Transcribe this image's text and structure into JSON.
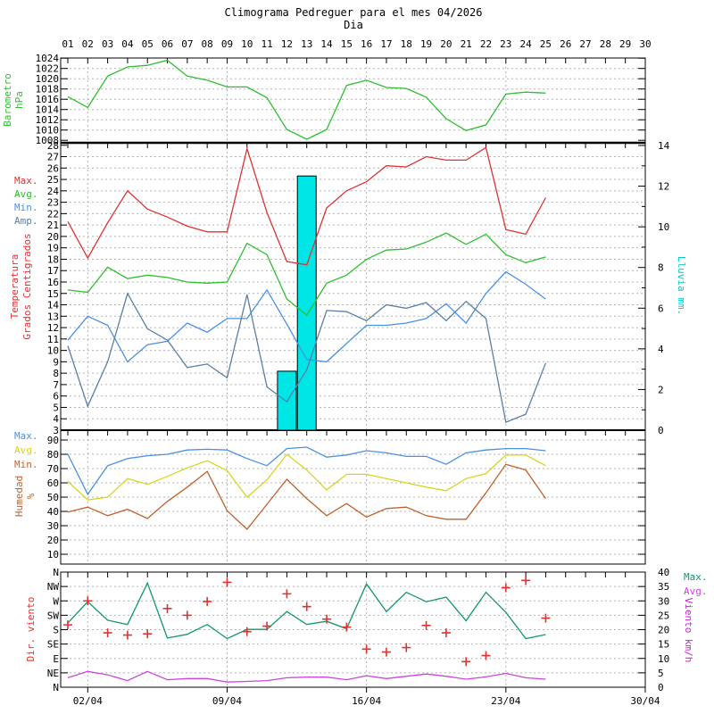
{
  "title": "Climograma Pedreguer para el mes 04/2026",
  "x_axis_title": "Dia",
  "top_axis_days": [
    "01",
    "02",
    "03",
    "04",
    "05",
    "06",
    "07",
    "08",
    "09",
    "10",
    "11",
    "12",
    "13",
    "14",
    "15",
    "16",
    "17",
    "18",
    "19",
    "20",
    "21",
    "22",
    "23",
    "24",
    "25",
    "26",
    "27",
    "28",
    "29",
    "30"
  ],
  "bottom_axis_labels": [
    {
      "label": "02/04",
      "day": 2
    },
    {
      "label": "09/04",
      "day": 9
    },
    {
      "label": "16/04",
      "day": 16
    },
    {
      "label": "23/04",
      "day": 23
    },
    {
      "label": "30/04",
      "day": 30
    }
  ],
  "week_gridline_days": [
    2,
    9,
    16,
    23
  ],
  "days": [
    1,
    2,
    3,
    4,
    5,
    6,
    7,
    8,
    9,
    10,
    11,
    12,
    13,
    14,
    15,
    16,
    17,
    18,
    19,
    20,
    21,
    22,
    23,
    24,
    25
  ],
  "colors": {
    "baro_axis": "#2fbf2f",
    "temp_axis": "#e03232",
    "rain_axis": "#00cccc",
    "hum_axis": "#c0622f",
    "wind_dir_axis": "#e03232",
    "wind_speed_axis": "#cc22cc",
    "grid": "#b3b3b3",
    "frame": "#000000",
    "tick_text": "#000000"
  },
  "chart_data": [
    {
      "id": "barometer",
      "type": "line",
      "ylabel": [
        "Barometro",
        "hPa"
      ],
      "ylim": [
        1007.5,
        1024
      ],
      "yticks": [
        1008,
        1010,
        1012,
        1014,
        1016,
        1018,
        1020,
        1022,
        1024
      ],
      "series": [
        {
          "name": "presion",
          "color": "#2fbf2f",
          "values": [
            1016.5,
            1014.4,
            1020.5,
            1022.3,
            1022.6,
            1023.6,
            1020.5,
            1019.7,
            1018.4,
            1018.4,
            1016.3,
            1010.1,
            1008.2,
            1010.1,
            1018.7,
            1019.7,
            1018.3,
            1018.1,
            1016.4,
            1012.2,
            1009.9,
            1011.0,
            1017.0,
            1017.4,
            1017.2
          ]
        }
      ]
    },
    {
      "id": "temperature",
      "type": "line+bar",
      "ylabel": [
        "Temperatura",
        "Grados Centigrados"
      ],
      "y2label": "Lluvia mm.",
      "ylim": [
        3,
        28
      ],
      "yticks": [
        3,
        4,
        5,
        6,
        7,
        8,
        9,
        10,
        11,
        12,
        13,
        14,
        15,
        16,
        17,
        18,
        19,
        20,
        21,
        22,
        23,
        24,
        25,
        26,
        27,
        28
      ],
      "y2lim": [
        0,
        14
      ],
      "y2ticks": [
        0,
        2,
        4,
        6,
        8,
        10,
        12,
        14
      ],
      "legend": [
        {
          "label": "Max.",
          "color": "#e03232"
        },
        {
          "label": "Avg.",
          "color": "#2fbf2f"
        },
        {
          "label": "Min.",
          "color": "#4a90e2"
        },
        {
          "label": "Amp.",
          "color": "#5b7fa3"
        }
      ],
      "series": [
        {
          "name": "max",
          "color": "#e03232",
          "values": [
            21.3,
            18.1,
            21.2,
            24.0,
            22.4,
            21.7,
            20.9,
            20.4,
            20.4,
            27.7,
            22.1,
            17.8,
            17.5,
            22.5,
            24.0,
            24.8,
            26.2,
            26.1,
            27.0,
            26.7,
            26.7,
            27.8,
            20.6,
            20.2,
            23.4
          ]
        },
        {
          "name": "avg",
          "color": "#2fbf2f",
          "values": [
            15.3,
            15.1,
            17.3,
            16.3,
            16.6,
            16.4,
            16.0,
            15.9,
            16.0,
            19.4,
            18.4,
            14.5,
            13.1,
            15.9,
            16.6,
            18.0,
            18.8,
            18.9,
            19.5,
            20.3,
            19.3,
            20.2,
            18.4,
            17.7,
            18.2
          ]
        },
        {
          "name": "min",
          "color": "#4a90e2",
          "values": [
            10.9,
            13.0,
            12.2,
            9.0,
            10.5,
            10.8,
            12.4,
            11.6,
            12.8,
            12.8,
            15.3,
            12.3,
            9.2,
            9.0,
            10.6,
            12.2,
            12.2,
            12.4,
            12.8,
            14.1,
            12.4,
            15.0,
            16.9,
            15.8,
            14.5
          ]
        },
        {
          "name": "amp",
          "color": "#5b7fa3",
          "values": [
            10.4,
            5.1,
            9.0,
            15.0,
            11.9,
            10.9,
            8.5,
            8.8,
            7.6,
            14.9,
            6.8,
            5.5,
            8.3,
            13.5,
            13.4,
            12.6,
            14.0,
            13.7,
            14.2,
            12.6,
            14.3,
            12.8,
            3.7,
            4.4,
            8.9
          ]
        }
      ],
      "bars": {
        "name": "lluvia",
        "color": "#00e5e5",
        "days": [
          12,
          13
        ],
        "values": [
          2.9,
          12.5
        ]
      }
    },
    {
      "id": "humidity",
      "type": "line",
      "ylabel": [
        "Humedad",
        "%"
      ],
      "ylim": [
        5,
        95
      ],
      "yticks": [
        10,
        20,
        30,
        40,
        50,
        60,
        70,
        80,
        90
      ],
      "legend": [
        {
          "label": "Max.",
          "color": "#4a90e2"
        },
        {
          "label": "Avg.",
          "color": "#d6d620"
        },
        {
          "label": "Min.",
          "color": "#c0622f"
        }
      ],
      "series": [
        {
          "name": "max",
          "color": "#4a90e2",
          "values": [
            80,
            52,
            72,
            77,
            79,
            80,
            83,
            83.5,
            83,
            77,
            72,
            84,
            85,
            78,
            79.5,
            82.5,
            81,
            78.5,
            78.5,
            73,
            81,
            83,
            84,
            84,
            82.5
          ]
        },
        {
          "name": "avg",
          "color": "#d6d620",
          "values": [
            61,
            48,
            50,
            63,
            59,
            64.5,
            70.5,
            75.5,
            68.5,
            50,
            62,
            80,
            69,
            55,
            66,
            66,
            63,
            60,
            57,
            54.5,
            63,
            66.5,
            79.5,
            79.5,
            72
          ]
        },
        {
          "name": "min",
          "color": "#c0622f",
          "values": [
            39.5,
            43,
            37,
            41.5,
            35,
            47,
            57,
            68,
            40.5,
            27.5,
            45,
            62.5,
            49,
            37,
            45.5,
            36,
            42,
            43,
            37,
            34.5,
            34.5,
            53,
            73,
            69,
            49
          ]
        }
      ]
    },
    {
      "id": "wind",
      "type": "scatter+line",
      "ylabel": "Dir. viento",
      "y2label": "Viento km/h",
      "dir_ticks": [
        "N",
        "NW",
        "W",
        "SW",
        "S",
        "SE",
        "E",
        "NE",
        "N"
      ],
      "y2lim": [
        0,
        40
      ],
      "y2ticks": [
        0,
        5,
        10,
        15,
        20,
        25,
        30,
        35,
        40
      ],
      "legend": [
        {
          "label": "Max.",
          "color": "#11996b"
        },
        {
          "label": "Avg.",
          "color": "#cc44dd"
        }
      ],
      "scatter": {
        "name": "direccion",
        "color": "#e03232",
        "degrees": [
          195,
          270,
          170,
          163,
          167,
          246,
          225,
          268,
          328,
          174,
          191,
          292,
          252,
          213,
          188,
          119,
          110,
          124,
          193,
          170,
          80,
          99,
          311,
          334,
          216
        ]
      },
      "series": [
        {
          "name": "max",
          "color": "#11996b",
          "values": [
            22.3,
            29.7,
            23.3,
            21.8,
            36.2,
            17.1,
            18.4,
            21.8,
            16.9,
            20.1,
            20.1,
            26.3,
            21.8,
            22.9,
            20.3,
            35.9,
            26.3,
            33.0,
            29.7,
            31.3,
            23.1,
            33.0,
            26.0,
            16.9,
            18.3
          ]
        },
        {
          "name": "avg",
          "color": "#cc44dd",
          "values": [
            3.3,
            5.5,
            4.3,
            2.3,
            5.5,
            2.6,
            3.0,
            3.0,
            1.8,
            2.0,
            2.3,
            3.3,
            3.5,
            3.5,
            2.6,
            4.0,
            3.0,
            3.8,
            4.6,
            3.8,
            2.8,
            3.6,
            4.8,
            3.3,
            2.8
          ]
        }
      ]
    }
  ]
}
